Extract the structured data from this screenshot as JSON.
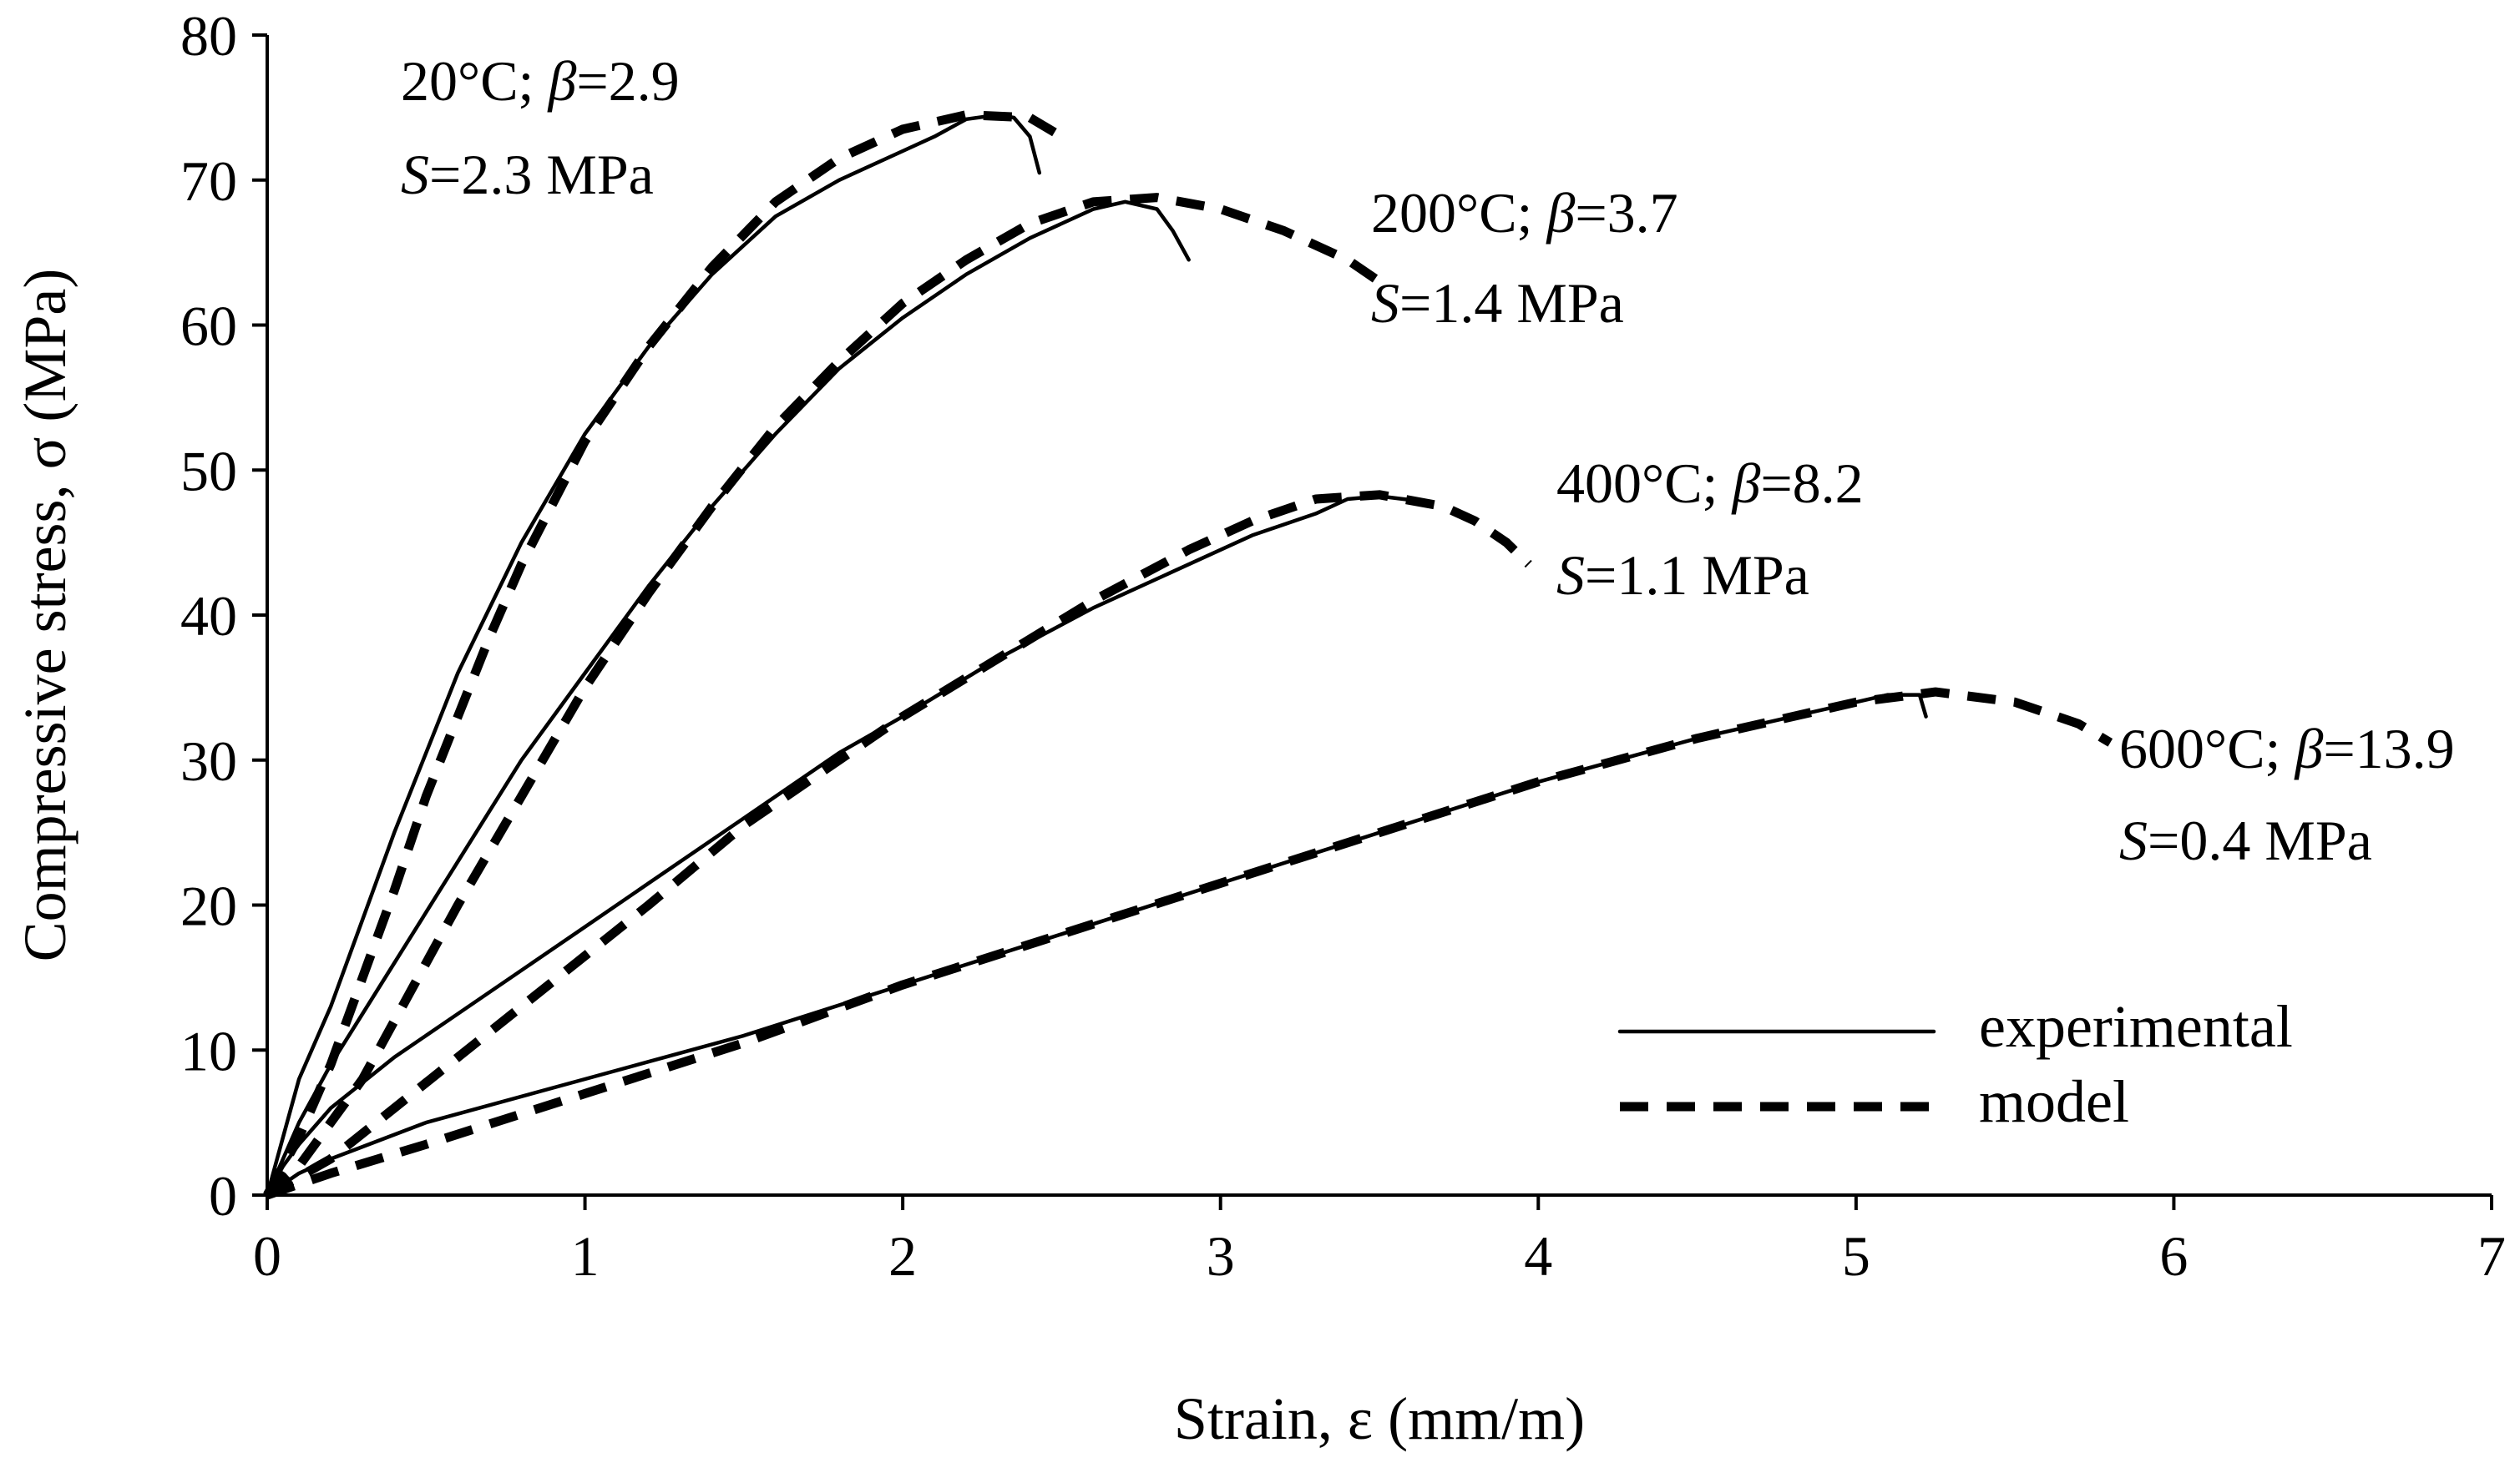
{
  "chart_data": {
    "type": "line",
    "title": "",
    "xlabel": "Strain, ε (mm/m)",
    "ylabel": "Compressive stress, σ (MPa)",
    "xlim": [
      0,
      7
    ],
    "ylim": [
      0,
      80
    ],
    "x_ticks": [
      0,
      1,
      2,
      3,
      4,
      5,
      6,
      7
    ],
    "y_ticks": [
      0,
      10,
      20,
      30,
      40,
      50,
      60,
      70,
      80
    ],
    "grid": false,
    "legend": {
      "placement": "bottom-right",
      "entries": [
        {
          "label": "experimental",
          "style": "solid"
        },
        {
          "label": "model",
          "style": "dashed"
        }
      ]
    },
    "series": [
      {
        "name": "20°C experimental",
        "kind": "experimental",
        "x": [
          0,
          0.05,
          0.1,
          0.2,
          0.3,
          0.4,
          0.5,
          0.6,
          0.8,
          1.0,
          1.2,
          1.4,
          1.6,
          1.8,
          2.0,
          2.1,
          2.2,
          2.3,
          2.35,
          2.4,
          2.43
        ],
        "y": [
          0,
          4,
          8,
          13,
          19,
          25,
          30.5,
          36,
          45,
          52.5,
          58.5,
          63.5,
          67.5,
          70,
          72,
          73,
          74.2,
          74.5,
          74.3,
          73,
          70.5
        ]
      },
      {
        "name": "20°C model",
        "kind": "model",
        "x": [
          0,
          0.1,
          0.2,
          0.3,
          0.4,
          0.5,
          0.6,
          0.7,
          0.8,
          1.0,
          1.2,
          1.4,
          1.6,
          1.8,
          2.0,
          2.2,
          2.4,
          2.5
        ],
        "y": [
          0,
          4,
          9,
          15,
          21,
          27.5,
          33,
          38.5,
          43.5,
          52,
          58.5,
          64,
          68.5,
          71.5,
          73.5,
          74.5,
          74.3,
          73
        ]
      },
      {
        "name": "200°C experimental",
        "kind": "experimental",
        "x": [
          0,
          0.05,
          0.1,
          0.2,
          0.4,
          0.6,
          0.8,
          1.0,
          1.2,
          1.4,
          1.6,
          1.8,
          2.0,
          2.2,
          2.4,
          2.6,
          2.7,
          2.8,
          2.85,
          2.9
        ],
        "y": [
          0,
          2.5,
          5,
          9,
          16,
          23,
          30,
          36,
          42,
          47.5,
          52.5,
          57,
          60.5,
          63.5,
          66,
          68,
          68.5,
          68,
          66.5,
          64.5
        ]
      },
      {
        "name": "200°C model",
        "kind": "model",
        "x": [
          0,
          0.1,
          0.2,
          0.3,
          0.4,
          0.6,
          0.8,
          1.0,
          1.2,
          1.4,
          1.6,
          1.8,
          2.0,
          2.2,
          2.4,
          2.6,
          2.8,
          3.0,
          3.2,
          3.4,
          3.5
        ],
        "y": [
          0,
          2,
          5,
          8,
          12,
          20,
          27.5,
          35,
          41.5,
          47.5,
          53,
          57.5,
          61.5,
          64.5,
          67,
          68.5,
          68.8,
          68,
          66.5,
          64.5,
          63
        ]
      },
      {
        "name": "400°C experimental",
        "kind": "experimental",
        "x": [
          0,
          0.05,
          0.1,
          0.2,
          0.4,
          0.6,
          0.8,
          1.0,
          1.2,
          1.5,
          1.8,
          2.0,
          2.3,
          2.6,
          2.9,
          3.1,
          3.3,
          3.4,
          3.5,
          3.65
        ],
        "y": [
          0,
          2,
          3.5,
          6,
          9.5,
          12.5,
          15.5,
          18.5,
          21.5,
          26,
          30.5,
          33,
          37,
          40.5,
          43.5,
          45.5,
          47,
          48,
          48.2,
          47.8
        ]
      },
      {
        "name": "400°C model",
        "kind": "model",
        "x": [
          0,
          0.2,
          0.4,
          0.6,
          0.8,
          1.0,
          1.2,
          1.5,
          1.8,
          2.0,
          2.3,
          2.6,
          2.9,
          3.1,
          3.3,
          3.5,
          3.7,
          3.8,
          3.9,
          3.97
        ],
        "y": [
          0,
          2.5,
          6,
          9.5,
          13,
          16.5,
          20,
          25.5,
          30,
          33,
          37,
          41,
          44.5,
          46.5,
          48,
          48.3,
          47.5,
          46.5,
          45,
          43.5
        ]
      },
      {
        "name": "600°C experimental",
        "kind": "experimental",
        "x": [
          0,
          0.1,
          0.2,
          0.5,
          1.0,
          1.5,
          2.0,
          2.5,
          3.0,
          3.5,
          4.0,
          4.5,
          5.0,
          5.1,
          5.2,
          5.22
        ],
        "y": [
          0,
          1.5,
          2.5,
          5,
          8,
          11,
          14.5,
          18,
          21.5,
          25,
          28.5,
          31.5,
          34,
          34.5,
          34.5,
          33
        ]
      },
      {
        "name": "600°C model",
        "kind": "model",
        "x": [
          0,
          0.2,
          0.5,
          1.0,
          1.5,
          2.0,
          2.5,
          3.0,
          3.5,
          4.0,
          4.5,
          5.0,
          5.25,
          5.5,
          5.7,
          5.8
        ],
        "y": [
          0,
          1.5,
          3.5,
          7,
          10.5,
          14.5,
          18,
          21.5,
          25,
          28.5,
          31.5,
          34,
          34.7,
          34,
          32.5,
          31.2
        ]
      }
    ],
    "annotations": [
      {
        "line1": {
          "temp": "20°C; ",
          "beta_sym": "β",
          "beta_val": "=2.9"
        },
        "line2": {
          "s_sym": "S",
          "s_val": "=2.3 MPa"
        }
      },
      {
        "line1": {
          "temp": "200°C; ",
          "beta_sym": "β",
          "beta_val": "=3.7"
        },
        "line2": {
          "s_sym": "S",
          "s_val": "=1.4 MPa"
        }
      },
      {
        "line1": {
          "temp": "400°C; ",
          "beta_sym": "β",
          "beta_val": "=8.2"
        },
        "line2": {
          "s_sym": "S",
          "s_val": "=1.1 MPa"
        }
      },
      {
        "line1": {
          "temp": "600°C; ",
          "beta_sym": "β",
          "beta_val": "=13.9"
        },
        "line2": {
          "s_sym": "S",
          "s_val": "=0.4 MPa"
        }
      }
    ]
  }
}
